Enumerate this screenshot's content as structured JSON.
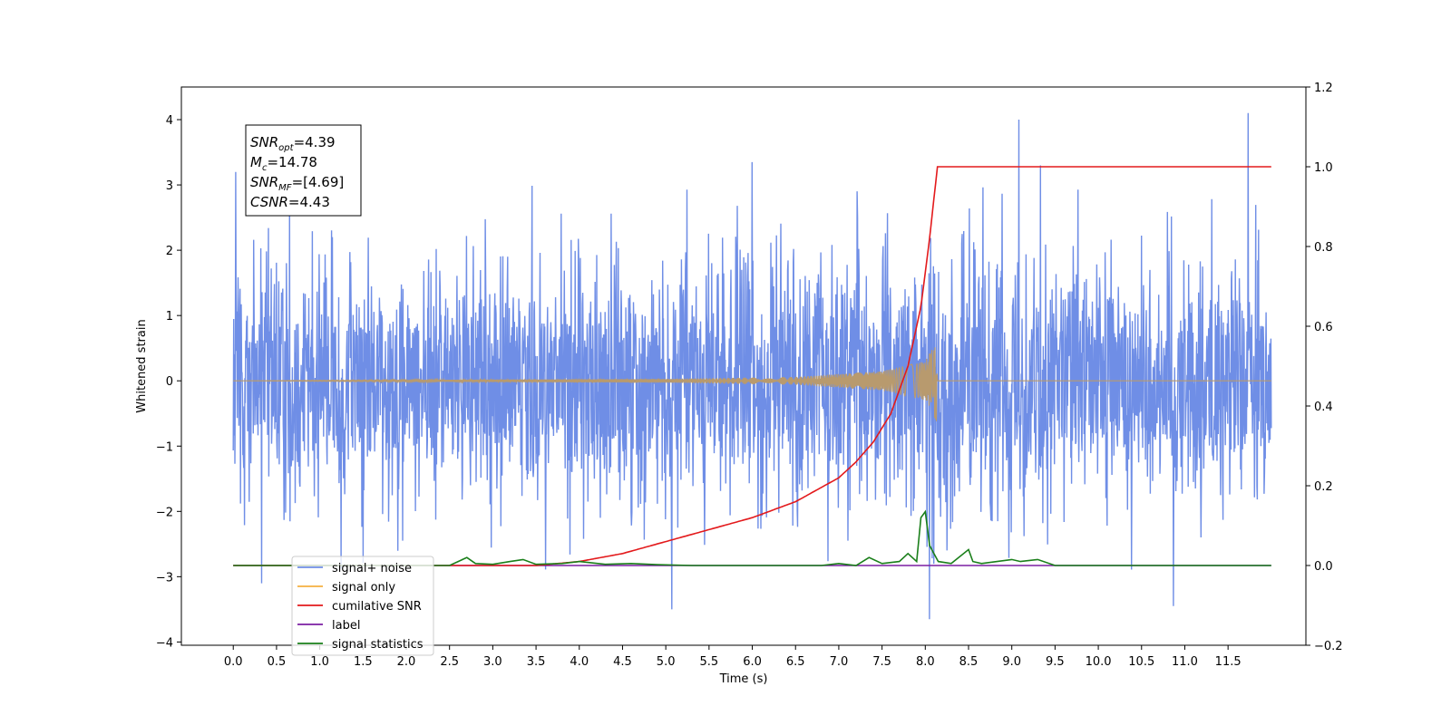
{
  "chart_data": {
    "type": "line",
    "xlabel": "Time (s)",
    "ylabel": "Whitened strain",
    "xlim": [
      -0.6,
      12.4
    ],
    "ylim": [
      -4.05,
      4.5
    ],
    "y2lim": [
      -0.2,
      1.2
    ],
    "x_ticks": [
      0.0,
      0.5,
      1.0,
      1.5,
      2.0,
      2.5,
      3.0,
      3.5,
      4.0,
      4.5,
      5.0,
      5.5,
      6.0,
      6.5,
      7.0,
      7.5,
      8.0,
      8.5,
      9.0,
      9.5,
      10.0,
      10.5,
      11.0,
      11.5
    ],
    "x_tick_labels": [
      "0.0",
      "0.5",
      "1.0",
      "1.5",
      "2.0",
      "2.5",
      "3.0",
      "3.5",
      "4.0",
      "4.5",
      "5.0",
      "5.5",
      "6.0",
      "6.5",
      "7.0",
      "7.5",
      "8.0",
      "8.5",
      "9.0",
      "9.5",
      "10.0",
      "10.5",
      "11.0",
      "11.5"
    ],
    "y_ticks": [
      -4,
      -3,
      -2,
      -1,
      0,
      1,
      2,
      3,
      4
    ],
    "y_tick_labels": [
      "−4",
      "−3",
      "−2",
      "−1",
      "0",
      "1",
      "2",
      "3",
      "4"
    ],
    "y2_ticks": [
      -0.2,
      0.0,
      0.2,
      0.4,
      0.6,
      0.8,
      1.0,
      1.2
    ],
    "y2_tick_labels": [
      "−0.2",
      "0.0",
      "0.2",
      "0.4",
      "0.6",
      "0.8",
      "1.0",
      "1.2"
    ],
    "grid": false,
    "legend_position": "lower-left",
    "annotation": {
      "lines": [
        {
          "main": "SNR",
          "sub": "opt",
          "value": "=4.39"
        },
        {
          "main": "M",
          "sub": "c",
          "value": "=14.78"
        },
        {
          "main": "SNR",
          "sub": "MF",
          "value": "=[4.69]"
        },
        {
          "main": "CSNR",
          "sub": "",
          "value": "=4.43"
        }
      ]
    },
    "series": [
      {
        "name": "signal+ noise",
        "color": "#6f8ee6",
        "axis": "left",
        "x_range": [
          0.0,
          12.0
        ],
        "noise_band": [
          -1.6,
          1.6
        ],
        "peaks": [
          {
            "x": 9.08,
            "y": 4.0
          },
          {
            "x": 11.73,
            "y": 4.1
          },
          {
            "x": 9.33,
            "y": 3.3
          },
          {
            "x": 6.0,
            "y": 3.35
          },
          {
            "x": 8.05,
            "y": -3.65
          },
          {
            "x": 5.07,
            "y": -3.5
          },
          {
            "x": 10.87,
            "y": -3.45
          },
          {
            "x": 0.33,
            "y": -3.1
          },
          {
            "x": 0.03,
            "y": 3.2
          }
        ]
      },
      {
        "name": "signal only",
        "color": "#f5b041",
        "axis": "left",
        "x": [
          0.0,
          5.0,
          6.5,
          7.5,
          8.0,
          8.14,
          8.18,
          12.0
        ],
        "amplitude": [
          0.0,
          0.03,
          0.06,
          0.15,
          0.3,
          0.65,
          0.0,
          0.0
        ]
      },
      {
        "name": "cumilative SNR",
        "color": "#e31a1c",
        "axis": "right",
        "x": [
          0.0,
          3.5,
          4.0,
          4.5,
          5.0,
          5.5,
          6.0,
          6.5,
          7.0,
          7.2,
          7.4,
          7.6,
          7.8,
          7.95,
          8.05,
          8.14,
          12.0
        ],
        "y": [
          0.0,
          0.0,
          0.01,
          0.03,
          0.06,
          0.09,
          0.12,
          0.16,
          0.22,
          0.26,
          0.31,
          0.38,
          0.5,
          0.65,
          0.82,
          1.0,
          1.0
        ]
      },
      {
        "name": "label",
        "color": "#7b1fa2",
        "axis": "right",
        "x": [
          0.0,
          12.0
        ],
        "y": [
          0.0,
          0.0
        ]
      },
      {
        "name": "signal statistics",
        "color": "#1a7f1a",
        "axis": "right",
        "x": [
          0.0,
          2.5,
          2.6,
          2.7,
          2.8,
          3.0,
          3.2,
          3.35,
          3.5,
          3.8,
          4.0,
          4.3,
          4.6,
          4.9,
          5.3,
          6.8,
          7.0,
          7.2,
          7.35,
          7.5,
          7.7,
          7.8,
          7.9,
          7.95,
          8.0,
          8.05,
          8.15,
          8.3,
          8.5,
          8.55,
          8.65,
          9.0,
          9.1,
          9.3,
          9.5,
          12.0
        ],
        "y": [
          0.0,
          0.0,
          0.01,
          0.02,
          0.005,
          0.003,
          0.01,
          0.015,
          0.003,
          0.005,
          0.01,
          0.003,
          0.005,
          0.002,
          0.0,
          0.0,
          0.005,
          0.0,
          0.02,
          0.005,
          0.01,
          0.03,
          0.01,
          0.12,
          0.135,
          0.05,
          0.01,
          0.005,
          0.04,
          0.01,
          0.005,
          0.015,
          0.01,
          0.015,
          0.0,
          0.0
        ]
      }
    ]
  }
}
